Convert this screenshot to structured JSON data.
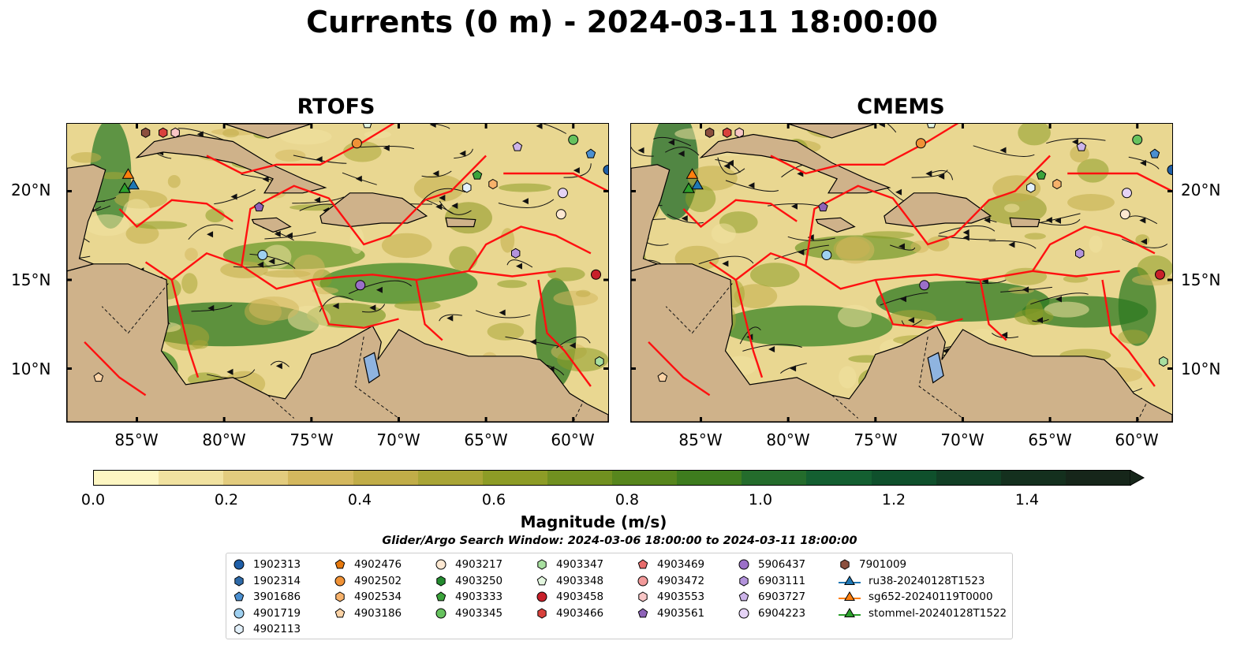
{
  "title": "Currents (0 m) - 2024-03-11 18:00:00",
  "panels": [
    {
      "id": "rtofs",
      "title": "RTOFS"
    },
    {
      "id": "cmems",
      "title": "CMEMS"
    }
  ],
  "map_extent": {
    "lon": [
      -89.0,
      -58.0
    ],
    "lat": [
      7.0,
      23.8
    ]
  },
  "lat_ticks": [
    "20°N",
    "15°N",
    "10°N"
  ],
  "lon_ticks": [
    "85°W",
    "80°W",
    "75°W",
    "70°W",
    "65°W",
    "60°W"
  ],
  "colorbar": {
    "label": "Magnitude (m/s)",
    "ticks": [
      "0.0",
      "0.2",
      "0.4",
      "0.6",
      "0.8",
      "1.0",
      "1.2",
      "1.4"
    ],
    "range": [
      0.0,
      1.5
    ],
    "extend": "max",
    "colors": [
      "#fdf6c2",
      "#f1e2a0",
      "#e3cc7e",
      "#d4b85e",
      "#c1ad48",
      "#a9a536",
      "#8d9c26",
      "#719020",
      "#57861d",
      "#3e7c1e",
      "#246c2c",
      "#145f31",
      "#0f502c",
      "#113f25",
      "#14301e",
      "#16261a"
    ]
  },
  "search_window": "Glider/Argo Search Window: 2024-03-06 18:00:00 to 2024-03-11 18:00:00",
  "legend": [
    {
      "label": "1902313",
      "marker": "circle",
      "color": "#1f5fa8"
    },
    {
      "label": "1902314",
      "marker": "hexagon",
      "color": "#2e6aa8"
    },
    {
      "label": "3901686",
      "marker": "pentagon",
      "color": "#4b8fd0"
    },
    {
      "label": "4901719",
      "marker": "circle",
      "color": "#9fd0f0"
    },
    {
      "label": "4902113",
      "marker": "hexagon",
      "color": "#e3f1fb"
    },
    {
      "label": "4902476",
      "marker": "pentagon",
      "color": "#e6790e"
    },
    {
      "label": "4902502",
      "marker": "circle",
      "color": "#f09236"
    },
    {
      "label": "4902534",
      "marker": "hexagon",
      "color": "#f7b26b"
    },
    {
      "label": "4903186",
      "marker": "pentagon",
      "color": "#fbd3a6"
    },
    {
      "label": "4903217",
      "marker": "circle",
      "color": "#fde8d2"
    },
    {
      "label": "4903250",
      "marker": "hexagon",
      "color": "#238b2f"
    },
    {
      "label": "4903333",
      "marker": "pentagon",
      "color": "#3ba33b"
    },
    {
      "label": "4903345",
      "marker": "circle",
      "color": "#66c25e"
    },
    {
      "label": "4903347",
      "marker": "hexagon",
      "color": "#a8e0a0"
    },
    {
      "label": "4903348",
      "marker": "pentagon",
      "color": "#e4f7e0"
    },
    {
      "label": "4903458",
      "marker": "circle",
      "color": "#c8202a"
    },
    {
      "label": "4903466",
      "marker": "hexagon",
      "color": "#d8413c"
    },
    {
      "label": "4903469",
      "marker": "pentagon",
      "color": "#e86c6c"
    },
    {
      "label": "4903472",
      "marker": "circle",
      "color": "#f29a9a"
    },
    {
      "label": "4903553",
      "marker": "hexagon",
      "color": "#f8c6c6"
    },
    {
      "label": "4903561",
      "marker": "pentagon",
      "color": "#8e63b8"
    },
    {
      "label": "5906437",
      "marker": "circle",
      "color": "#9b6fc8"
    },
    {
      "label": "6903111",
      "marker": "hexagon",
      "color": "#b393dc"
    },
    {
      "label": "6903727",
      "marker": "pentagon",
      "color": "#cdb4ea"
    },
    {
      "label": "6904223",
      "marker": "circle",
      "color": "#e5d3f6"
    },
    {
      "label": "7901009",
      "marker": "hexagon",
      "color": "#8b4f3e"
    },
    {
      "label": "ru38-20240128T1523",
      "marker": "triangle-line",
      "color": "#1f77b4"
    },
    {
      "label": "sg652-20240119T0000",
      "marker": "triangle-line",
      "color": "#ff7f0e"
    },
    {
      "label": "stommel-20240128T1522",
      "marker": "triangle-line",
      "color": "#2ca02c"
    }
  ],
  "markers": [
    {
      "label": "7901009",
      "lon": -84.5,
      "lat": 23.3
    },
    {
      "label": "4903466",
      "lon": -83.5,
      "lat": 23.3
    },
    {
      "label": "4903553",
      "lon": -82.8,
      "lat": 23.3
    },
    {
      "label": "4903348",
      "lon": -71.8,
      "lat": 23.8
    },
    {
      "label": "4902502",
      "lon": -72.4,
      "lat": 22.7
    },
    {
      "label": "6903727",
      "lon": -63.2,
      "lat": 22.5
    },
    {
      "label": "4903345",
      "lon": -60.0,
      "lat": 22.9
    },
    {
      "label": "3901686",
      "lon": -59.0,
      "lat": 22.1
    },
    {
      "label": "1902313",
      "lon": -58.0,
      "lat": 21.2
    },
    {
      "label": "4903333",
      "lon": -65.5,
      "lat": 20.9
    },
    {
      "label": "4902113",
      "lon": -66.1,
      "lat": 20.2
    },
    {
      "label": "4902534",
      "lon": -64.6,
      "lat": 20.4
    },
    {
      "label": "6904223",
      "lon": -60.6,
      "lat": 19.9
    },
    {
      "label": "4903217",
      "lon": -60.7,
      "lat": 18.7
    },
    {
      "label": "4903561",
      "lon": -78.0,
      "lat": 19.1
    },
    {
      "label": "4901719",
      "lon": -77.8,
      "lat": 16.4
    },
    {
      "label": "5906437",
      "lon": -72.2,
      "lat": 14.7
    },
    {
      "label": "6903111",
      "lon": -63.3,
      "lat": 16.5
    },
    {
      "label": "4903458",
      "lon": -58.7,
      "lat": 15.3
    },
    {
      "label": "4903347",
      "lon": -58.5,
      "lat": 10.4
    },
    {
      "label": "4903186",
      "lon": -87.2,
      "lat": 9.5
    }
  ],
  "gliders": [
    {
      "label": "sg652-20240119T0000",
      "lon": -85.5,
      "lat": 20.9
    },
    {
      "label": "ru38-20240128T1523",
      "lon": -85.2,
      "lat": 20.3
    },
    {
      "label": "stommel-20240128T1522",
      "lon": -85.7,
      "lat": 20.1
    }
  ]
}
